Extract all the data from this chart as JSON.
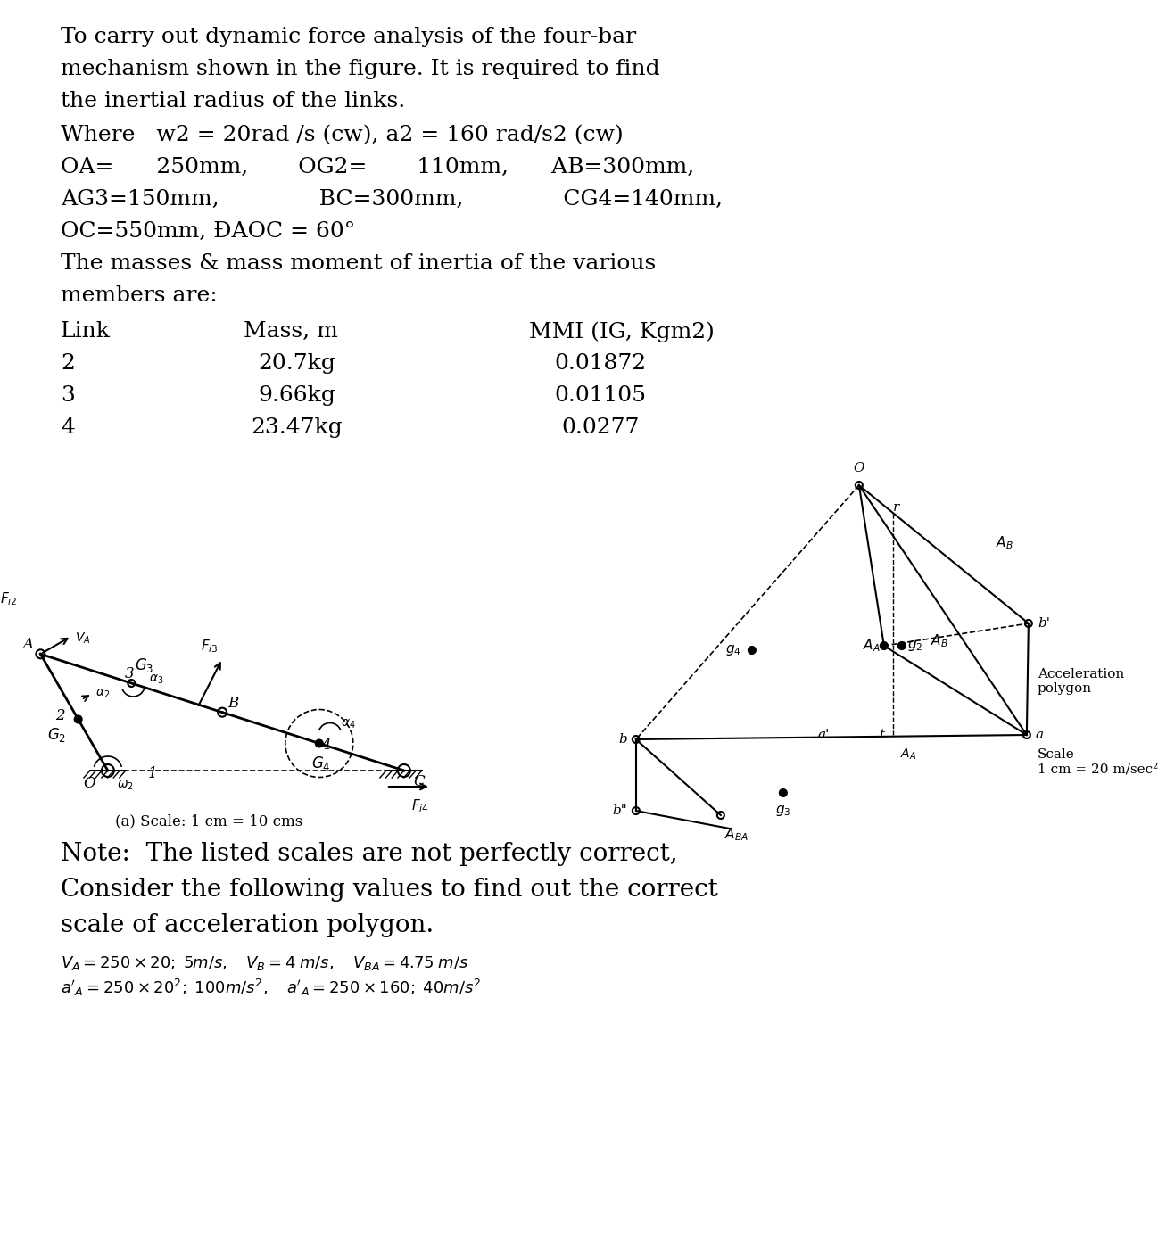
{
  "bg_color": "#ffffff",
  "text_color": "#000000",
  "title_lines": [
    "To carry out dynamic force analysis of the four-bar",
    "mechanism shown in the figure. It is required to find",
    "the inertial radius of the links."
  ],
  "param_line1": "Where   w2 = 20rad /s (cw), a2 = 160 rad/s2 (cw)",
  "param_line2a": "OA=      250mm,       OG2=       110mm,      AB=300mm,",
  "param_line2b": "AG3=150mm,              BC=300mm,              CG4=140mm,",
  "param_line2c": "OC=550mm, ĐAOC = 60°",
  "param_line3": "The masses & mass moment of inertia of the various",
  "param_line3b": "members are:",
  "table_header": [
    "Link",
    "Mass, m",
    "MMI (IG, Kgm2)"
  ],
  "table_rows": [
    [
      "2",
      "20.7kg",
      "0.01872"
    ],
    [
      "3",
      "9.66kg",
      "0.01105"
    ],
    [
      "4",
      "23.47kg",
      "0.0277"
    ]
  ],
  "note_line1": "Note:  The listed scales are not perfectly correct,",
  "note_line2": "Consider the following values to find out the correct",
  "note_line3": "scale of acceleration polygon.",
  "scale_a": "(a) Scale: 1 cm = 10 cms",
  "scale_b": "Scale\n1 cm = 20 m/sec²",
  "accel_polygon": "Acceleration\npolygon",
  "fs_main": 18,
  "fs_tbl": 18,
  "fs_note": 20,
  "fs_small": 13,
  "fs_diag": 12
}
